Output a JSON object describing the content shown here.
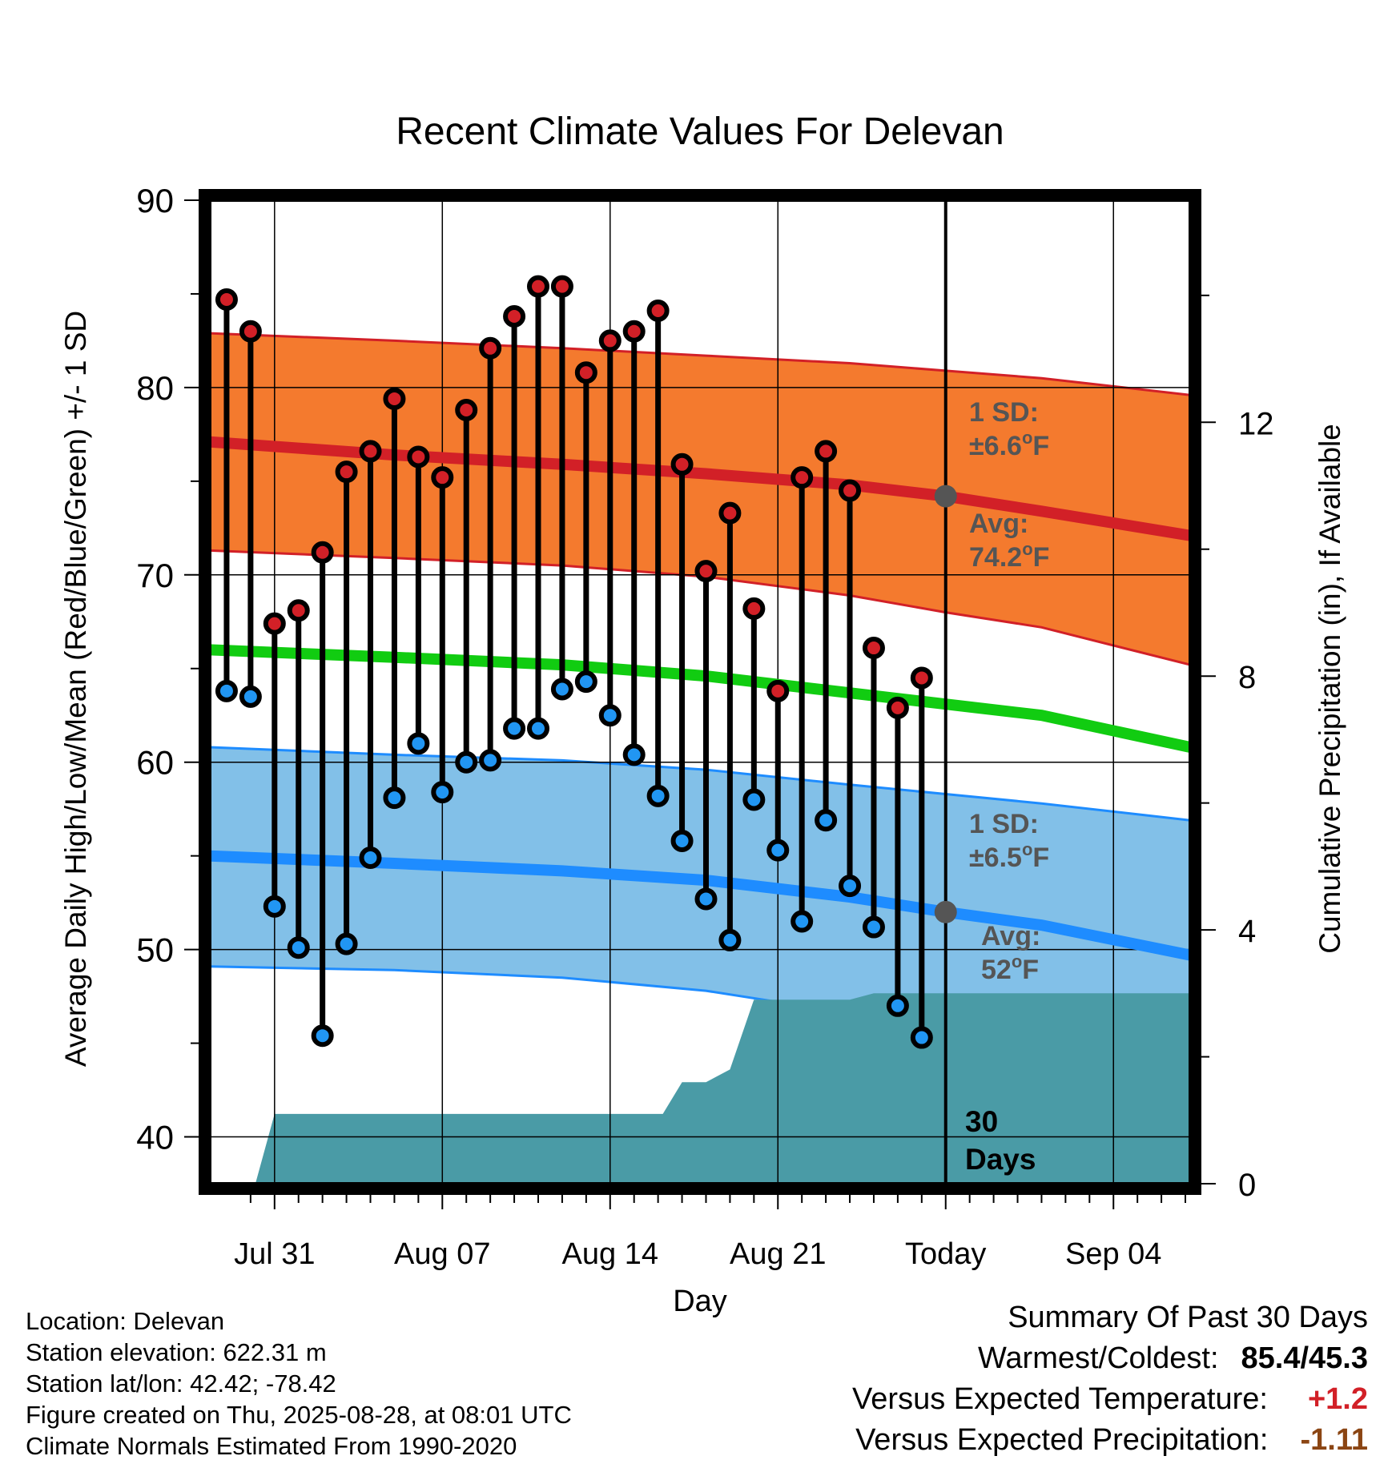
{
  "chart_data": {
    "type": "line",
    "title": "Recent Climate Values For Delevan",
    "xlabel": "Day",
    "ylabel": "Average Daily High/Low/Mean (Red/Blue/Green) +/- 1 SD",
    "y2label": "Cumulative Precipitation (in), If Available",
    "ylim": [
      37.5,
      90
    ],
    "y2lim": [
      0,
      15.5
    ],
    "xlim": [
      -2.7,
      38.2
    ],
    "x_tick_positions": [
      0,
      7,
      14,
      21,
      28,
      35
    ],
    "x_tick_labels": [
      "Jul 31",
      "Aug 07",
      "Aug 14",
      "Aug 21",
      "Today",
      "Sep 04"
    ],
    "y_ticks": [
      40,
      50,
      60,
      70,
      80,
      90
    ],
    "y2_ticks": [
      0,
      4,
      8,
      12
    ],
    "grid": true,
    "colors": {
      "high_band": "#f47a2e",
      "high_line": "#d22027",
      "low_band": "#82c0e8",
      "low_line": "#1e8cff",
      "mean_line": "#11cc11",
      "precip": "#4a9ba6",
      "high_dot": "#d22027",
      "low_dot": "#2196f3",
      "stats_text": "#555555"
    },
    "observed": {
      "days": [
        -2,
        -1,
        0,
        1,
        2,
        3,
        4,
        5,
        6,
        7,
        8,
        9,
        10,
        11,
        12,
        13,
        14,
        15,
        16,
        17,
        18,
        19,
        20,
        21,
        22,
        23,
        24,
        25,
        26,
        27
      ],
      "highs": [
        84.7,
        83.0,
        67.4,
        68.1,
        71.2,
        75.5,
        76.6,
        79.4,
        76.3,
        75.2,
        78.8,
        82.1,
        83.8,
        85.4,
        85.4,
        80.8,
        82.5,
        83.0,
        84.1,
        75.9,
        70.2,
        73.3,
        68.2,
        63.8,
        75.2,
        76.6,
        74.5,
        66.1,
        62.9,
        64.5
      ],
      "lows": [
        63.8,
        63.5,
        52.3,
        50.1,
        45.4,
        50.3,
        54.9,
        58.1,
        61.0,
        58.4,
        60.0,
        60.1,
        61.8,
        61.8,
        63.9,
        64.3,
        62.5,
        60.4,
        58.2,
        55.8,
        52.7,
        50.5,
        58.0,
        55.3,
        51.5,
        56.9,
        53.4,
        51.2,
        47.0,
        45.3
      ]
    },
    "normals": {
      "days": [
        -2.7,
        5,
        12,
        18,
        24,
        28,
        32,
        38.2
      ],
      "avg_high": [
        77.1,
        76.4,
        75.9,
        75.4,
        74.8,
        74.2,
        73.4,
        72.1
      ],
      "avg_high_plus_sd": [
        82.9,
        82.5,
        82.1,
        81.7,
        81.3,
        80.9,
        80.5,
        79.6
      ],
      "avg_high_minus_sd": [
        71.3,
        70.9,
        70.5,
        69.9,
        68.9,
        68.0,
        67.2,
        65.2
      ],
      "avg_mean": [
        66.0,
        65.6,
        65.2,
        64.6,
        63.7,
        63.1,
        62.5,
        60.8
      ],
      "avg_low": [
        55.0,
        54.6,
        54.2,
        53.7,
        52.8,
        52.0,
        51.3,
        49.7
      ],
      "avg_low_plus_sd": [
        60.8,
        60.4,
        60.1,
        59.6,
        58.8,
        58.3,
        57.8,
        56.9
      ],
      "avg_low_minus_sd": [
        49.1,
        48.9,
        48.5,
        47.8,
        46.6,
        45.6,
        44.8,
        43.5
      ]
    },
    "precipitation_cumulative": {
      "days": [
        -0.8,
        0,
        16.2,
        17,
        18,
        19,
        20,
        24,
        25,
        38.2
      ],
      "values": [
        0,
        1.1,
        1.1,
        1.6,
        1.6,
        1.8,
        2.9,
        2.9,
        3.0,
        3.0
      ]
    },
    "annotations": {
      "today_marker": {
        "day": 28,
        "label_number": "30",
        "label_text": "Days",
        "high_avg": 74.2,
        "low_avg": 52.0
      },
      "high_sd_label": "1 SD:",
      "high_sd_value": "±6.6",
      "high_avg_label": "Avg:",
      "high_avg_value": "74.2",
      "low_sd_label": "1 SD:",
      "low_sd_value": "±6.5",
      "low_avg_label": "Avg:",
      "low_avg_value": "52",
      "degree_unit": "o",
      "fahrenheit_unit": "F"
    }
  },
  "metadata_text": {
    "location": "Location: Delevan",
    "elevation": "Station elevation: 622.31 m",
    "latlon": "Station lat/lon: 42.42; -78.42",
    "created": "Figure created on Thu, 2025-08-28, at 08:01 UTC",
    "normals": "Climate Normals Estimated From 1990-2020"
  },
  "summary": {
    "title": "Summary Of Past 30 Days",
    "warmest_coldest_label": "Warmest/Coldest:",
    "warmest_coldest_value": "85.4/45.3",
    "temp_label": "Versus Expected Temperature:",
    "temp_value": "+1.2",
    "temp_color": "#d22027",
    "precip_label": "Versus Expected Precipitation:",
    "precip_value": "-1.11",
    "precip_color": "#8b4513"
  }
}
